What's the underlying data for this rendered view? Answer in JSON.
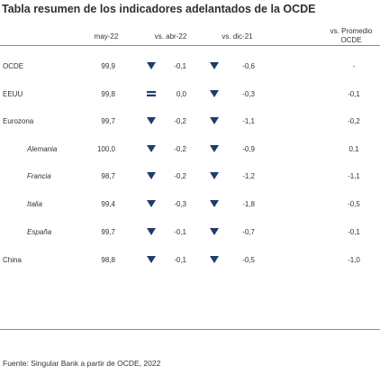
{
  "title": "Tabla resumen de los indicadores adelantados de la OCDE",
  "columns": {
    "level": "may-22",
    "vs_prev": "vs. abr-22",
    "vs_dec": "vs. dic-21",
    "vs_avg_line1": "vs. Promedio",
    "vs_avg_line2": "OCDE"
  },
  "rows": [
    {
      "name": "OCDE",
      "sub": false,
      "level": "99,9",
      "vs_prev": "-0,1",
      "vs_prev_dir": "down",
      "vs_dec": "-0,6",
      "vs_dec_dir": "down",
      "vs_avg": "-"
    },
    {
      "name": "EEUU",
      "sub": false,
      "level": "99,8",
      "vs_prev": "0,0",
      "vs_prev_dir": "flat",
      "vs_dec": "-0,3",
      "vs_dec_dir": "down",
      "vs_avg": "-0,1"
    },
    {
      "name": "Eurozona",
      "sub": false,
      "level": "99,7",
      "vs_prev": "-0,2",
      "vs_prev_dir": "down",
      "vs_dec": "-1,1",
      "vs_dec_dir": "down",
      "vs_avg": "-0,2"
    },
    {
      "name": "Alemania",
      "sub": true,
      "level": "100,0",
      "vs_prev": "-0,2",
      "vs_prev_dir": "down",
      "vs_dec": "-0,9",
      "vs_dec_dir": "down",
      "vs_avg": "0,1"
    },
    {
      "name": "Francia",
      "sub": true,
      "level": "98,7",
      "vs_prev": "-0,2",
      "vs_prev_dir": "down",
      "vs_dec": "-1,2",
      "vs_dec_dir": "down",
      "vs_avg": "-1,1"
    },
    {
      "name": "Italia",
      "sub": true,
      "level": "99,4",
      "vs_prev": "-0,3",
      "vs_prev_dir": "down",
      "vs_dec": "-1,8",
      "vs_dec_dir": "down",
      "vs_avg": "-0,5"
    },
    {
      "name": "España",
      "sub": true,
      "level": "99,7",
      "vs_prev": "-0,1",
      "vs_prev_dir": "down",
      "vs_dec": "-0,7",
      "vs_dec_dir": "down",
      "vs_avg": "-0,1"
    },
    {
      "name": "China",
      "sub": false,
      "level": "98,8",
      "vs_prev": "-0,1",
      "vs_prev_dir": "down",
      "vs_dec": "-0,5",
      "vs_dec_dir": "down",
      "vs_avg": "-1,0"
    }
  ],
  "source": "Fuente: Singular Bank a partir de OCDE, 2022",
  "colors": {
    "arrow": "#1f3d6b",
    "border": "#8a8a8a",
    "text": "#333333"
  }
}
